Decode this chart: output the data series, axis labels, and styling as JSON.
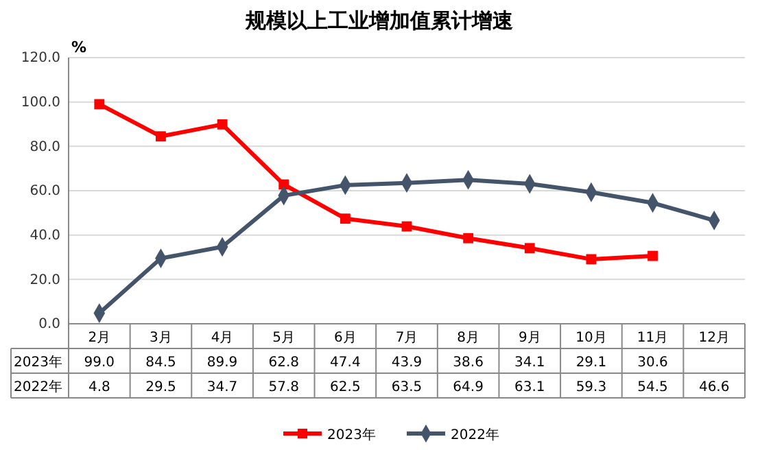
{
  "chart_data": {
    "type": "line",
    "title": "规模以上工业增加值累计增速",
    "ylabel": "%",
    "categories": [
      "2月",
      "3月",
      "4月",
      "5月",
      "6月",
      "7月",
      "8月",
      "9月",
      "10月",
      "11月",
      "12月"
    ],
    "series": [
      {
        "name": "2023年",
        "color": "#ff0000",
        "marker": "square",
        "values": [
          99.0,
          84.5,
          89.9,
          62.8,
          47.4,
          43.9,
          38.6,
          34.1,
          29.1,
          30.6,
          null
        ],
        "value_labels": [
          "99.0",
          "84.5",
          "89.9",
          "62.8",
          "47.4",
          "43.9",
          "38.6",
          "34.1",
          "29.1",
          "30.6",
          null
        ]
      },
      {
        "name": "2022年",
        "color": "#44546a",
        "marker": "diamond",
        "values": [
          4.8,
          29.5,
          34.7,
          57.8,
          62.5,
          63.5,
          64.9,
          63.1,
          59.3,
          54.5,
          46.6
        ],
        "value_labels": [
          "4.8",
          "29.5",
          "34.7",
          "57.8",
          "62.5",
          "63.5",
          "64.9",
          "63.1",
          "59.3",
          "54.5",
          "46.6"
        ]
      }
    ],
    "ylim": [
      0,
      120
    ],
    "yticks": [
      {
        "value": 0,
        "label": "0.0"
      },
      {
        "value": 20,
        "label": "20.0"
      },
      {
        "value": 40,
        "label": "40.0"
      },
      {
        "value": 60,
        "label": "60.0"
      },
      {
        "value": 80,
        "label": "80.0"
      },
      {
        "value": 100,
        "label": "100.0"
      },
      {
        "value": 120,
        "label": "120.0"
      }
    ],
    "grid": "y",
    "legend": "bottom",
    "line_style": "solid"
  }
}
